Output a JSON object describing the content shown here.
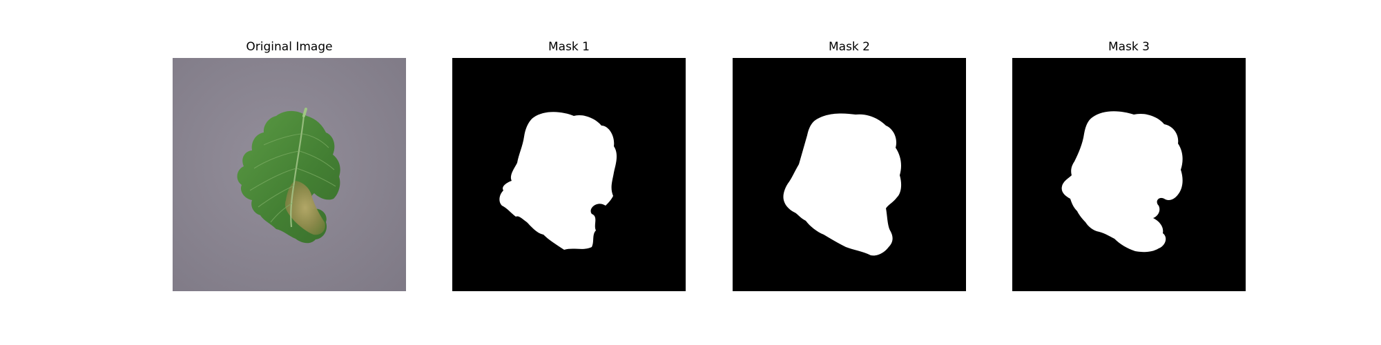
{
  "figure": {
    "panels": [
      {
        "title": "Original Image",
        "kind": "photo",
        "subject": "tomato-leaf-with-blight-on-grey-surface"
      },
      {
        "title": "Mask 1",
        "kind": "mask",
        "foreground_color": "#ffffff",
        "background_color": "#000000"
      },
      {
        "title": "Mask 2",
        "kind": "mask",
        "foreground_color": "#ffffff",
        "background_color": "#000000"
      },
      {
        "title": "Mask 3",
        "kind": "mask",
        "foreground_color": "#ffffff",
        "background_color": "#000000"
      }
    ],
    "colors": {
      "background": "#ffffff",
      "photo_surface": "#8d8894",
      "leaf_green": "#4e8a3a",
      "leaf_dark": "#2f5e24",
      "blight_tan": "#a59a5c",
      "mask_fg": "#ffffff",
      "mask_bg": "#000000"
    }
  }
}
